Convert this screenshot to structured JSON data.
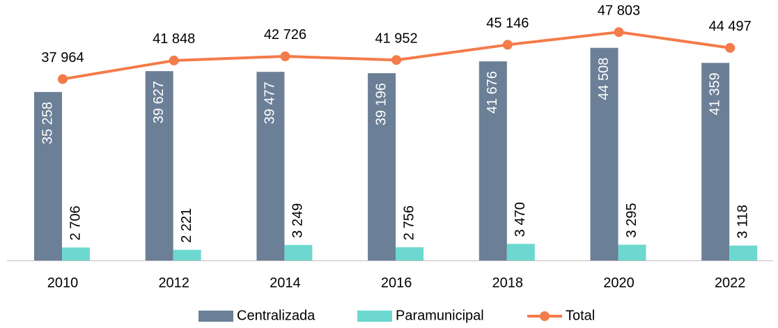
{
  "chart_data": {
    "type": "bar_line",
    "categories": [
      "2010",
      "2012",
      "2014",
      "2016",
      "2018",
      "2020",
      "2022"
    ],
    "series": [
      {
        "name": "Centralizada",
        "type": "bar",
        "color": "#6b7f96",
        "values": [
          35258,
          39627,
          39477,
          39196,
          41676,
          44508,
          41359
        ],
        "value_labels": [
          "35 258",
          "39 627",
          "39 477",
          "39 196",
          "41 676",
          "44 508",
          "41 359"
        ]
      },
      {
        "name": "Paramunicipal",
        "type": "bar",
        "color": "#6cd8d0",
        "values": [
          2706,
          2221,
          3249,
          2756,
          3470,
          3295,
          3118
        ],
        "value_labels": [
          "2 706",
          "2 221",
          "3 249",
          "2 756",
          "3 470",
          "3 295",
          "3 118"
        ]
      },
      {
        "name": "Total",
        "type": "line",
        "color": "#f47b4a",
        "values": [
          37964,
          41848,
          42726,
          41952,
          45146,
          47803,
          44497
        ],
        "value_labels": [
          "37 964",
          "41 848",
          "42 726",
          "41 952",
          "45 146",
          "47 803",
          "44 497"
        ]
      }
    ],
    "ylim": [
      0,
      50000
    ],
    "legend": "bottom"
  }
}
